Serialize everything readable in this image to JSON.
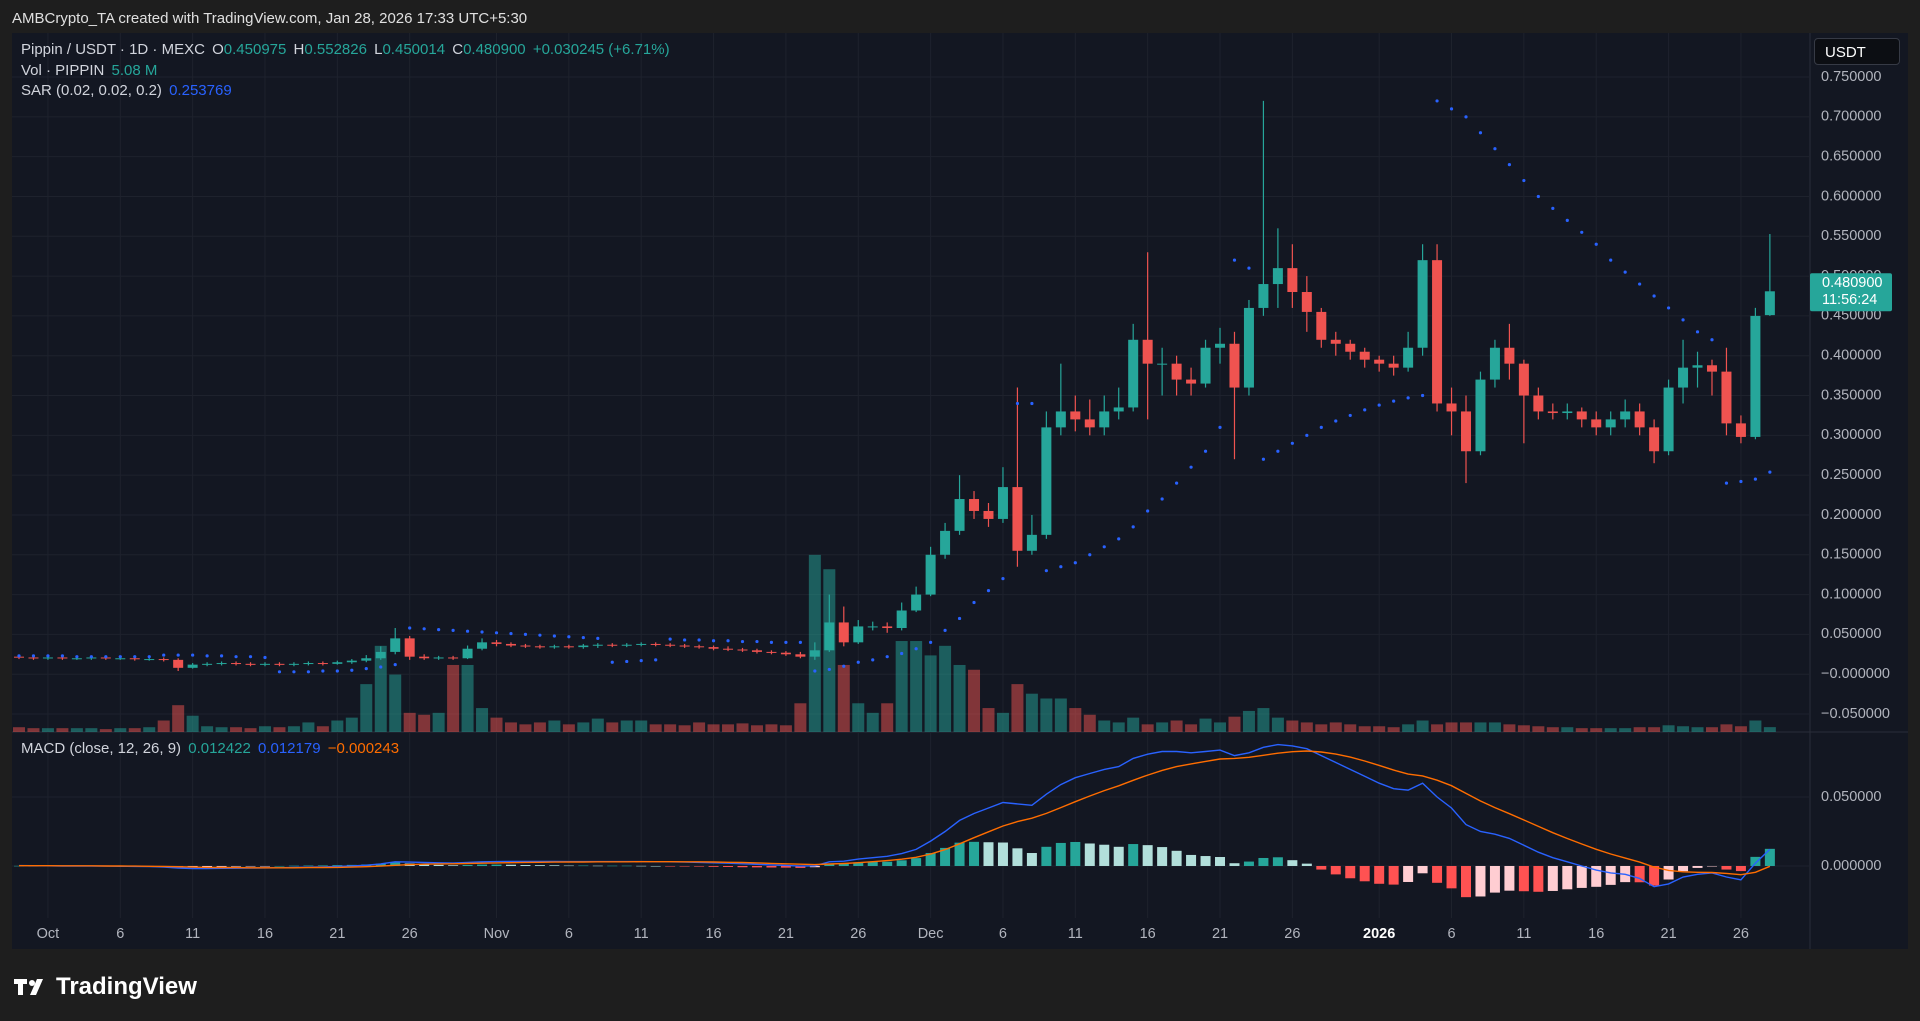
{
  "header": {
    "credit": "AMBCrypto_TA created with TradingView.com, Jan 28, 2026 17:33 UTC+5:30",
    "brand": "TradingView"
  },
  "chart_data": {
    "type": "candlestick",
    "legend": {
      "symbol": "Pippin / USDT · 1D · MEXC",
      "o_label": "O",
      "h_label": "H",
      "l_label": "L",
      "c_label": "C",
      "change": "+0.030245 (+6.71%)"
    },
    "close_label": "0.480900",
    "countdown": "11:56:24",
    "currency": "USDT",
    "volume_label": "Vol · PIPPIN",
    "volume_value_label": "5.08 M",
    "sar_label": "SAR (0.02, 0.02, 0.2)",
    "macd_label": "MACD (close, 12, 26, 9)",
    "signal_value_label": "−0.000243",
    "categories": [
      null,
      null,
      "Oct",
      null,
      null,
      null,
      null,
      "6",
      null,
      null,
      null,
      null,
      "11",
      null,
      null,
      null,
      null,
      "16",
      null,
      null,
      null,
      null,
      "21",
      null,
      null,
      null,
      null,
      "26",
      null,
      null,
      null,
      null,
      null,
      "Nov",
      null,
      null,
      null,
      null,
      "6",
      null,
      null,
      null,
      null,
      "11",
      null,
      null,
      null,
      null,
      "16",
      null,
      null,
      null,
      null,
      "21",
      null,
      null,
      null,
      null,
      "26",
      null,
      null,
      null,
      null,
      "Dec",
      null,
      null,
      null,
      null,
      "6",
      null,
      null,
      null,
      null,
      "11",
      null,
      null,
      null,
      null,
      "16",
      null,
      null,
      null,
      null,
      "21",
      null,
      null,
      null,
      null,
      "26",
      null,
      null,
      null,
      null,
      null,
      "2026",
      null,
      null,
      null,
      null,
      "6",
      null,
      null,
      null,
      null,
      "11",
      null,
      null,
      null,
      null,
      "16",
      null,
      null,
      null,
      null,
      "21",
      null,
      null,
      null,
      null,
      "26",
      null,
      null
    ],
    "open": [
      0.022,
      0.021,
      0.02,
      0.021,
      0.02,
      0.02,
      0.021,
      0.02,
      0.02,
      0.019,
      0.019,
      0.018,
      0.008,
      0.012,
      0.013,
      0.014,
      0.013,
      0.012,
      0.013,
      0.012,
      0.013,
      0.014,
      0.013,
      0.015,
      0.017,
      0.02,
      0.028,
      0.045,
      0.022,
      0.02,
      0.021,
      0.02,
      0.032,
      0.04,
      0.038,
      0.036,
      0.035,
      0.034,
      0.035,
      0.034,
      0.036,
      0.037,
      0.036,
      0.037,
      0.038,
      0.037,
      0.036,
      0.035,
      0.034,
      0.032,
      0.031,
      0.03,
      0.028,
      0.027,
      0.025,
      0.022,
      0.03,
      0.065,
      0.04,
      0.06,
      0.06,
      0.058,
      0.08,
      0.1,
      0.15,
      0.18,
      0.22,
      0.205,
      0.195,
      0.235,
      0.155,
      0.175,
      0.31,
      0.33,
      0.32,
      0.31,
      0.33,
      0.335,
      0.42,
      0.39,
      0.39,
      0.37,
      0.365,
      0.41,
      0.415,
      0.36,
      0.46,
      0.49,
      0.51,
      0.48,
      0.455,
      0.42,
      0.415,
      0.405,
      0.395,
      0.39,
      0.385,
      0.41,
      0.52,
      0.34,
      0.33,
      0.28,
      0.37,
      0.41,
      0.39,
      0.35,
      0.33,
      0.328,
      0.33,
      0.32,
      0.31,
      0.32,
      0.33,
      0.31,
      0.28,
      0.36,
      0.385,
      0.388,
      0.38,
      0.315,
      0.298,
      0.450975
    ],
    "high": [
      0.024,
      0.023,
      0.023,
      0.023,
      0.022,
      0.023,
      0.023,
      0.022,
      0.022,
      0.021,
      0.021,
      0.02,
      0.014,
      0.015,
      0.016,
      0.016,
      0.015,
      0.015,
      0.015,
      0.015,
      0.016,
      0.016,
      0.017,
      0.019,
      0.024,
      0.035,
      0.058,
      0.048,
      0.025,
      0.023,
      0.023,
      0.036,
      0.045,
      0.043,
      0.04,
      0.038,
      0.037,
      0.037,
      0.037,
      0.038,
      0.039,
      0.039,
      0.039,
      0.04,
      0.04,
      0.039,
      0.038,
      0.037,
      0.036,
      0.035,
      0.033,
      0.032,
      0.03,
      0.029,
      0.028,
      0.04,
      0.1,
      0.085,
      0.068,
      0.066,
      0.065,
      0.09,
      0.11,
      0.16,
      0.19,
      0.25,
      0.23,
      0.215,
      0.26,
      0.36,
      0.2,
      0.33,
      0.39,
      0.35,
      0.345,
      0.35,
      0.36,
      0.44,
      0.53,
      0.41,
      0.4,
      0.385,
      0.42,
      0.435,
      0.43,
      0.47,
      0.72,
      0.56,
      0.54,
      0.5,
      0.46,
      0.43,
      0.42,
      0.41,
      0.4,
      0.4,
      0.43,
      0.54,
      0.54,
      0.36,
      0.35,
      0.38,
      0.42,
      0.44,
      0.395,
      0.36,
      0.34,
      0.34,
      0.335,
      0.33,
      0.33,
      0.345,
      0.34,
      0.32,
      0.37,
      0.42,
      0.405,
      0.395,
      0.41,
      0.325,
      0.46,
      0.552826
    ],
    "low": [
      0.019,
      0.018,
      0.018,
      0.018,
      0.018,
      0.018,
      0.018,
      0.018,
      0.017,
      0.017,
      0.016,
      0.004,
      0.007,
      0.01,
      0.011,
      0.011,
      0.01,
      0.01,
      0.01,
      0.01,
      0.011,
      0.011,
      0.012,
      0.013,
      0.015,
      0.018,
      0.025,
      0.018,
      0.018,
      0.018,
      0.018,
      0.019,
      0.03,
      0.035,
      0.034,
      0.033,
      0.032,
      0.032,
      0.032,
      0.032,
      0.033,
      0.034,
      0.034,
      0.035,
      0.035,
      0.034,
      0.033,
      0.032,
      0.03,
      0.029,
      0.028,
      0.026,
      0.025,
      0.023,
      0.02,
      0.018,
      0.028,
      0.035,
      0.038,
      0.055,
      0.052,
      0.055,
      0.078,
      0.098,
      0.145,
      0.175,
      0.195,
      0.185,
      0.19,
      0.135,
      0.15,
      0.17,
      0.3,
      0.305,
      0.3,
      0.3,
      0.32,
      0.33,
      0.32,
      0.35,
      0.35,
      0.35,
      0.36,
      0.39,
      0.27,
      0.35,
      0.45,
      0.46,
      0.46,
      0.43,
      0.41,
      0.4,
      0.395,
      0.385,
      0.38,
      0.375,
      0.38,
      0.4,
      0.33,
      0.3,
      0.24,
      0.275,
      0.36,
      0.37,
      0.29,
      0.32,
      0.32,
      0.32,
      0.31,
      0.3,
      0.3,
      0.31,
      0.3,
      0.265,
      0.275,
      0.34,
      0.36,
      0.35,
      0.3,
      0.29,
      0.295,
      0.450014
    ],
    "close": [
      0.021,
      0.02,
      0.021,
      0.02,
      0.02,
      0.021,
      0.02,
      0.02,
      0.019,
      0.019,
      0.018,
      0.008,
      0.012,
      0.013,
      0.014,
      0.013,
      0.012,
      0.013,
      0.012,
      0.013,
      0.014,
      0.013,
      0.015,
      0.017,
      0.02,
      0.028,
      0.045,
      0.022,
      0.02,
      0.021,
      0.02,
      0.032,
      0.04,
      0.038,
      0.036,
      0.035,
      0.034,
      0.035,
      0.034,
      0.036,
      0.037,
      0.036,
      0.037,
      0.038,
      0.037,
      0.036,
      0.035,
      0.034,
      0.032,
      0.031,
      0.03,
      0.028,
      0.027,
      0.025,
      0.022,
      0.03,
      0.065,
      0.04,
      0.06,
      0.06,
      0.058,
      0.08,
      0.1,
      0.15,
      0.18,
      0.22,
      0.205,
      0.195,
      0.235,
      0.155,
      0.175,
      0.31,
      0.33,
      0.32,
      0.31,
      0.33,
      0.335,
      0.42,
      0.39,
      0.39,
      0.37,
      0.365,
      0.41,
      0.415,
      0.36,
      0.46,
      0.49,
      0.51,
      0.48,
      0.455,
      0.42,
      0.415,
      0.405,
      0.395,
      0.39,
      0.385,
      0.41,
      0.52,
      0.34,
      0.33,
      0.28,
      0.37,
      0.41,
      0.39,
      0.35,
      0.33,
      0.328,
      0.33,
      0.32,
      0.31,
      0.32,
      0.33,
      0.31,
      0.28,
      0.36,
      0.385,
      0.388,
      0.38,
      0.315,
      0.298,
      0.45,
      0.4809
    ],
    "volume": [
      5,
      4,
      4,
      4,
      4,
      4,
      3,
      4,
      4,
      5,
      12,
      28,
      17,
      6,
      5,
      5,
      4,
      6,
      5,
      6,
      10,
      6,
      12,
      15,
      50,
      90,
      60,
      20,
      18,
      20,
      70,
      70,
      25,
      15,
      10,
      8,
      10,
      12,
      8,
      10,
      14,
      10,
      12,
      12,
      8,
      8,
      7,
      10,
      8,
      8,
      9,
      7,
      8,
      7,
      30,
      185,
      170,
      70,
      30,
      20,
      30,
      95,
      95,
      80,
      90,
      70,
      65,
      25,
      20,
      50,
      40,
      35,
      35,
      25,
      18,
      12,
      10,
      15,
      8,
      10,
      12,
      8,
      14,
      10,
      16,
      22,
      25,
      15,
      12,
      10,
      8,
      10,
      8,
      6,
      6,
      5,
      8,
      12,
      8,
      10,
      10,
      10,
      10,
      8,
      7,
      6,
      5,
      5,
      4,
      4,
      4,
      4,
      5,
      5,
      7,
      6,
      5,
      5,
      8,
      6,
      12,
      5.08
    ],
    "sar": [
      0.023,
      0.023,
      0.023,
      0.023,
      0.022,
      0.022,
      0.022,
      0.022,
      0.022,
      0.022,
      0.024,
      0.024,
      0.024,
      0.023,
      0.023,
      0.022,
      0.022,
      0.021,
      0.003,
      0.003,
      0.003,
      0.004,
      0.004,
      0.005,
      0.007,
      0.009,
      0.012,
      0.058,
      0.057,
      0.056,
      0.055,
      0.054,
      0.053,
      0.052,
      0.051,
      0.05,
      0.049,
      0.048,
      0.047,
      0.046,
      0.045,
      0.015,
      0.016,
      0.017,
      0.018,
      0.044,
      0.043,
      0.043,
      0.042,
      0.042,
      0.041,
      0.041,
      0.04,
      0.04,
      0.04,
      0.004,
      0.006,
      0.01,
      0.015,
      0.018,
      0.022,
      0.026,
      0.032,
      0.04,
      0.055,
      0.07,
      0.09,
      0.105,
      0.12,
      0.34,
      0.34,
      0.13,
      0.135,
      0.14,
      0.15,
      0.16,
      0.17,
      0.185,
      0.205,
      0.22,
      0.24,
      0.26,
      0.28,
      0.31,
      0.52,
      0.51,
      0.27,
      0.28,
      0.29,
      0.3,
      0.31,
      0.318,
      0.325,
      0.332,
      0.338,
      0.343,
      0.347,
      0.35,
      0.72,
      0.71,
      0.7,
      0.68,
      0.66,
      0.64,
      0.62,
      0.6,
      0.585,
      0.57,
      0.555,
      0.54,
      0.52,
      0.505,
      0.49,
      0.475,
      0.46,
      0.445,
      0.43,
      0.42,
      0.24,
      0.242,
      0.245,
      0.253769
    ],
    "macd": [
      0.0003,
      0.0002,
      0.0001,
      0,
      0,
      -0.0001,
      -0.0001,
      -0.0002,
      -0.0003,
      -0.0004,
      -0.0008,
      -0.0015,
      -0.0018,
      -0.0018,
      -0.0017,
      -0.0016,
      -0.0015,
      -0.0014,
      -0.0013,
      -0.0011,
      -0.0009,
      -0.0007,
      -0.0004,
      0,
      0.0006,
      0.0015,
      0.003,
      0.0028,
      0.0025,
      0.0023,
      0.0021,
      0.0025,
      0.003,
      0.0032,
      0.0033,
      0.0033,
      0.0033,
      0.0033,
      0.0032,
      0.0032,
      0.0032,
      0.0032,
      0.0032,
      0.0032,
      0.0031,
      0.003,
      0.0028,
      0.0026,
      0.0023,
      0.002,
      0.0016,
      0.0012,
      0.0008,
      0.0004,
      -0.0001,
      0.0001,
      0.003,
      0.0035,
      0.005,
      0.006,
      0.007,
      0.009,
      0.012,
      0.018,
      0.025,
      0.033,
      0.038,
      0.042,
      0.046,
      0.045,
      0.044,
      0.052,
      0.059,
      0.064,
      0.067,
      0.07,
      0.072,
      0.078,
      0.081,
      0.083,
      0.083,
      0.082,
      0.083,
      0.084,
      0.08,
      0.082,
      0.086,
      0.088,
      0.087,
      0.085,
      0.08,
      0.075,
      0.07,
      0.065,
      0.06,
      0.056,
      0.055,
      0.06,
      0.05,
      0.042,
      0.03,
      0.025,
      0.023,
      0.02,
      0.015,
      0.01,
      0.006,
      0.003,
      0,
      -0.003,
      -0.005,
      -0.006,
      -0.009,
      -0.015,
      -0.013,
      -0.008,
      -0.006,
      -0.005,
      -0.008,
      -0.01,
      0.002,
      0.012179
    ],
    "signal": [
      0.0002,
      0.0002,
      0.0002,
      0.0001,
      0.0001,
      0.0001,
      0,
      0,
      -0.0001,
      -0.0002,
      -0.0003,
      -0.0005,
      -0.0008,
      -0.001,
      -0.0011,
      -0.0012,
      -0.0013,
      -0.0013,
      -0.0013,
      -0.0013,
      -0.0012,
      -0.0011,
      -0.001,
      -0.0008,
      -0.0005,
      -0.0001,
      0.0005,
      0.001,
      0.0013,
      0.0015,
      0.0016,
      0.0018,
      0.002,
      0.0022,
      0.0024,
      0.0026,
      0.0027,
      0.0028,
      0.0029,
      0.0029,
      0.003,
      0.003,
      0.003,
      0.0031,
      0.0031,
      0.0031,
      0.003,
      0.003,
      0.0029,
      0.0027,
      0.0025,
      0.0022,
      0.0019,
      0.0016,
      0.0013,
      0.001,
      0.0014,
      0.0018,
      0.0024,
      0.0031,
      0.0039,
      0.0049,
      0.0063,
      0.0086,
      0.0119,
      0.0161,
      0.0205,
      0.0248,
      0.029,
      0.0322,
      0.0346,
      0.0381,
      0.0423,
      0.0466,
      0.0507,
      0.0546,
      0.0581,
      0.0621,
      0.0659,
      0.0693,
      0.072,
      0.074,
      0.0758,
      0.0775,
      0.078,
      0.0788,
      0.0802,
      0.0817,
      0.0828,
      0.0833,
      0.0826,
      0.0811,
      0.0789,
      0.0761,
      0.0729,
      0.0695,
      0.0666,
      0.0653,
      0.0622,
      0.0582,
      0.0526,
      0.0471,
      0.0423,
      0.0379,
      0.0333,
      0.0287,
      0.0241,
      0.0199,
      0.0159,
      0.0121,
      0.0087,
      0.0057,
      0.0028,
      -0.0008,
      -0.0032,
      -0.0042,
      -0.0046,
      -0.0047,
      -0.0054,
      -0.0063,
      -0.0046,
      -0.000243
    ],
    "histogram": [
      0.0001,
      0,
      -0.0001,
      -0.0001,
      -0.0001,
      -0.0002,
      -0.0001,
      -0.0002,
      -0.0002,
      -0.0002,
      -0.0005,
      -0.001,
      -0.001,
      -0.0008,
      -0.0006,
      -0.0004,
      -0.0002,
      -0.0001,
      0,
      0.0002,
      0.0003,
      0.0004,
      0.0006,
      0.0008,
      0.0011,
      0.0016,
      0.0025,
      0.0018,
      0.0012,
      0.0008,
      0.0005,
      0.0007,
      0.001,
      0.001,
      0.0009,
      0.0007,
      0.0006,
      0.0005,
      0.0003,
      0.0003,
      0.0002,
      0.0002,
      0.0002,
      0.0001,
      0,
      -0.0001,
      -0.0002,
      -0.0004,
      -0.0006,
      -0.0007,
      -0.0009,
      -0.001,
      -0.0011,
      -0.0012,
      -0.0014,
      -0.0009,
      0.0016,
      0.0017,
      0.0026,
      0.0029,
      0.0031,
      0.0041,
      0.0057,
      0.0094,
      0.0131,
      0.0169,
      0.0175,
      0.0172,
      0.017,
      0.0128,
      0.0094,
      0.0139,
      0.0167,
      0.0174,
      0.0163,
      0.0154,
      0.0139,
      0.0159,
      0.0151,
      0.0137,
      0.011,
      0.008,
      0.0072,
      0.0065,
      0.002,
      0.0032,
      0.0058,
      0.0063,
      0.0042,
      0.0017,
      -0.0026,
      -0.0061,
      -0.0089,
      -0.0111,
      -0.0129,
      -0.0135,
      -0.0116,
      -0.0053,
      -0.0122,
      -0.0162,
      -0.0226,
      -0.0221,
      -0.0193,
      -0.0179,
      -0.0183,
      -0.0187,
      -0.0181,
      -0.0169,
      -0.0159,
      -0.0151,
      -0.0137,
      -0.0117,
      -0.0118,
      -0.0142,
      -0.0098,
      -0.0038,
      -0.0014,
      -0.0003,
      -0.0026,
      -0.0037,
      0.0066,
      0.012422
    ],
    "ylim": [
      -0.0726,
      0.8053
    ],
    "yticks": [
      {
        "value": 0.75,
        "label": "0.750000"
      },
      {
        "value": 0.7,
        "label": "0.700000"
      },
      {
        "value": 0.65,
        "label": "0.650000"
      },
      {
        "value": 0.6,
        "label": "0.600000"
      },
      {
        "value": 0.55,
        "label": "0.550000"
      },
      {
        "value": 0.5,
        "label": "0.500000"
      },
      {
        "value": 0.45,
        "label": "0.450000"
      },
      {
        "value": 0.4,
        "label": "0.400000"
      },
      {
        "value": 0.35,
        "label": "0.350000"
      },
      {
        "value": 0.3,
        "label": "0.300000"
      },
      {
        "value": 0.25,
        "label": "0.250000"
      },
      {
        "value": 0.2,
        "label": "0.200000"
      },
      {
        "value": 0.15,
        "label": "0.150000"
      },
      {
        "value": 0.1,
        "label": "0.100000"
      },
      {
        "value": 0.05,
        "label": "0.050000"
      },
      {
        "value": 0,
        "label": "−0.000000"
      },
      {
        "value": -0.05,
        "label": "−0.050000"
      }
    ],
    "vol_ylim": [
      0,
      730
    ],
    "y2lim": [
      -0.0377,
      0.0971
    ],
    "y2ticks": [
      {
        "value": 0.05,
        "label": "0.050000"
      },
      {
        "value": 0,
        "label": "0.000000"
      }
    ],
    "grid": true,
    "colors": {
      "up": "#26a69a",
      "down": "#ef5350",
      "vol_up": "rgba(38,166,154,0.5)",
      "vol_down": "rgba(239,83,80,0.5)",
      "sar": "#2962ff",
      "macd": "#2962ff",
      "signal": "#ff6d00",
      "hist_up_strong": "#26a69a",
      "hist_up_weak": "#b2dfdb",
      "hist_down_weak": "#ffcdd2",
      "hist_down_strong": "#ff5252"
    }
  }
}
